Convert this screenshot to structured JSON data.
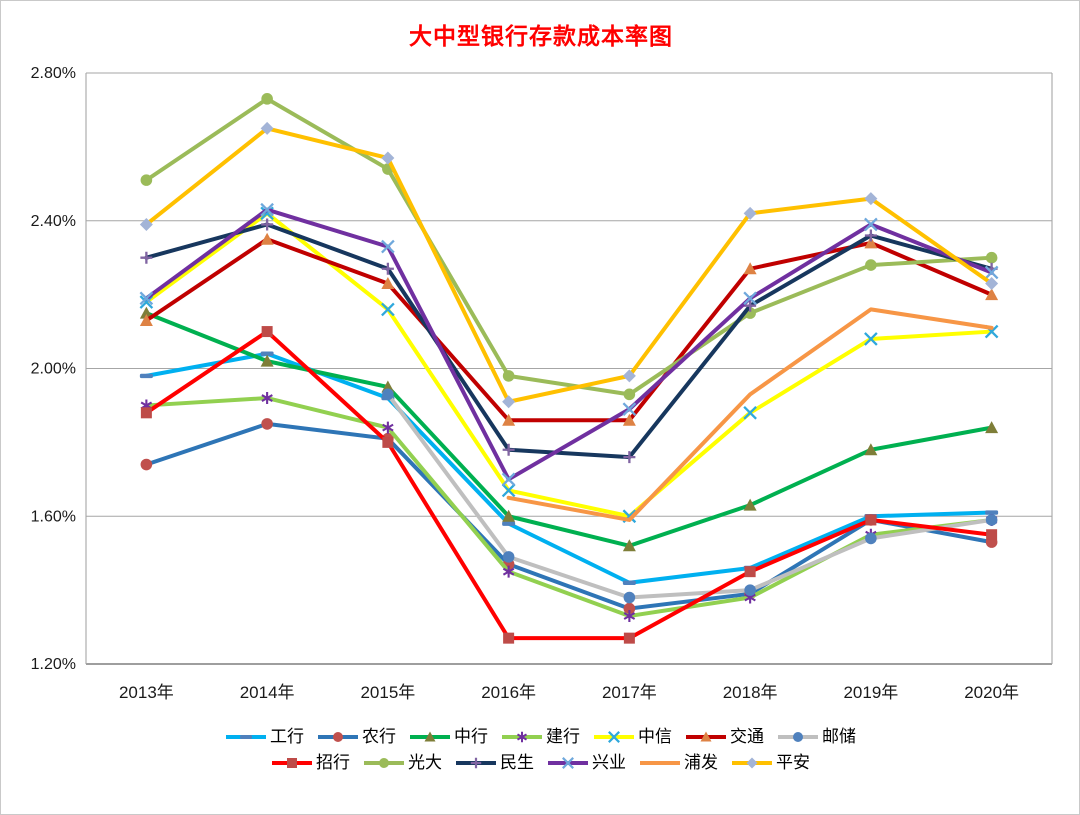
{
  "figure": {
    "title": "大中型银行存款成本率图",
    "title_color": "#FF0000",
    "background": "#FFFFFF",
    "border_color": "#C9C9C9"
  },
  "chart_data": {
    "type": "line",
    "title": "大中型银行存款成本率图",
    "xlabel": "",
    "ylabel": "",
    "unit": "%",
    "categories": [
      "2013年",
      "2014年",
      "2015年",
      "2016年",
      "2017年",
      "2018年",
      "2019年",
      "2020年"
    ],
    "y_ticks": [
      "1.20%",
      "1.60%",
      "2.00%",
      "2.40%",
      "2.80%"
    ],
    "ylim": [
      1.2,
      2.8
    ],
    "y_step": 0.4,
    "grid": true,
    "legend_position": "bottom",
    "legend_rows": [
      [
        "工行",
        "农行",
        "中行",
        "建行",
        "中信",
        "交通",
        "邮储"
      ],
      [
        "招行",
        "光大",
        "民生",
        "兴业",
        "浦发",
        "平安"
      ]
    ],
    "series": [
      {
        "name": "工行",
        "id": "icbc",
        "line_color": "#00B0F0",
        "marker": "dash",
        "marker_color": "#4F81BD",
        "values": [
          1.98,
          2.04,
          1.92,
          1.58,
          1.42,
          1.46,
          1.6,
          1.61
        ]
      },
      {
        "name": "农行",
        "id": "abc",
        "line_color": "#2E75B6",
        "marker": "circle",
        "marker_color": "#C0504D",
        "values": [
          1.74,
          1.85,
          1.81,
          1.47,
          1.35,
          1.39,
          1.59,
          1.53
        ]
      },
      {
        "name": "中行",
        "id": "boc",
        "line_color": "#00B050",
        "marker": "triangle",
        "marker_color": "#7E7E38",
        "values": [
          2.15,
          2.02,
          1.95,
          1.6,
          1.52,
          1.63,
          1.78,
          1.84
        ]
      },
      {
        "name": "建行",
        "id": "ccb",
        "line_color": "#92D050",
        "marker": "asterisk",
        "marker_color": "#7030A0",
        "values": [
          1.9,
          1.92,
          1.84,
          1.45,
          1.33,
          1.38,
          1.55,
          1.59
        ]
      },
      {
        "name": "中信",
        "id": "citic",
        "line_color": "#FFFF00",
        "marker": "x",
        "marker_color": "#2FA8DC",
        "values": [
          2.18,
          2.42,
          2.16,
          1.67,
          1.6,
          1.88,
          2.08,
          2.1
        ]
      },
      {
        "name": "交通",
        "id": "bocom",
        "line_color": "#C00000",
        "marker": "triangle",
        "marker_color": "#DE8244",
        "values": [
          2.13,
          2.35,
          2.23,
          1.86,
          1.86,
          2.27,
          2.34,
          2.2
        ]
      },
      {
        "name": "邮储",
        "id": "psbc",
        "line_color": "#BFBFBF",
        "marker": "circle",
        "marker_color": "#4F81BD",
        "values": [
          null,
          null,
          1.93,
          1.49,
          1.38,
          1.4,
          1.54,
          1.59
        ]
      },
      {
        "name": "招行",
        "id": "cmb",
        "line_color": "#FF0000",
        "marker": "square",
        "marker_color": "#BE4B48",
        "values": [
          1.88,
          2.1,
          1.8,
          1.27,
          1.27,
          1.45,
          1.59,
          1.55
        ]
      },
      {
        "name": "光大",
        "id": "ceb",
        "line_color": "#9BBB59",
        "marker": "circle",
        "marker_color": "#9BBB59",
        "values": [
          2.51,
          2.73,
          2.54,
          1.98,
          1.93,
          2.15,
          2.28,
          2.3
        ]
      },
      {
        "name": "民生",
        "id": "minsheng",
        "line_color": "#17375E",
        "marker": "plus",
        "marker_color": "#8064A2",
        "values": [
          2.3,
          2.39,
          2.27,
          1.78,
          1.76,
          2.17,
          2.36,
          2.27
        ]
      },
      {
        "name": "兴业",
        "id": "cib",
        "line_color": "#7030A0",
        "marker": "x",
        "marker_color": "#6FA8DC",
        "values": [
          2.19,
          2.43,
          2.33,
          1.7,
          1.89,
          2.19,
          2.39,
          2.26
        ]
      },
      {
        "name": "浦发",
        "id": "spdb",
        "line_color": "#F79646",
        "marker": "none",
        "marker_color": "#F79646",
        "values": [
          null,
          null,
          null,
          1.65,
          1.59,
          1.93,
          2.16,
          2.11
        ]
      },
      {
        "name": "平安",
        "id": "pingan",
        "line_color": "#FFC000",
        "marker": "diamond",
        "marker_color": "#A3B4D7",
        "values": [
          2.39,
          2.65,
          2.57,
          1.91,
          1.98,
          2.42,
          2.46,
          2.23
        ]
      }
    ]
  },
  "layout_colors": {
    "gridline": "#A6A6A6",
    "axis_line": "#7F7F7F",
    "tick_label": "#1A1A1A"
  }
}
